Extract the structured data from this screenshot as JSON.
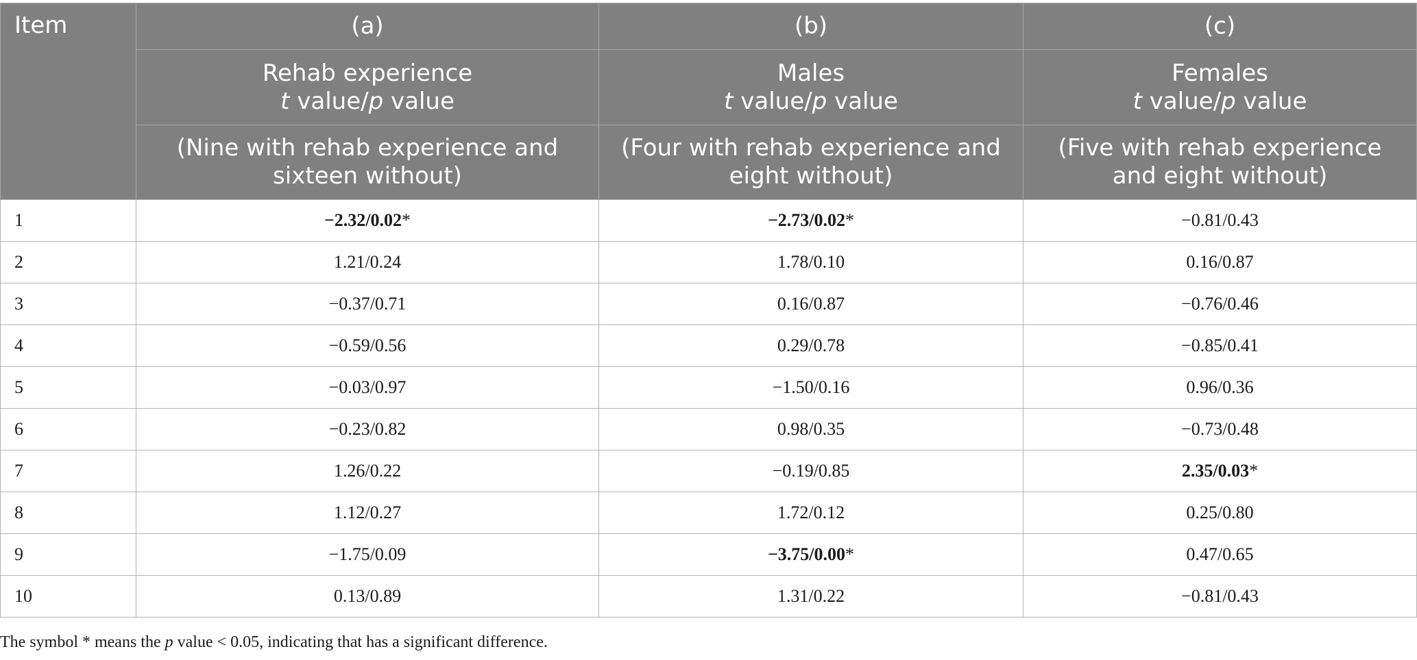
{
  "table": {
    "header": {
      "item_label": "Item",
      "columns": [
        {
          "letter": "(a)",
          "title": "Rehab experience",
          "metric": {
            "t": "t",
            "mid": " value/",
            "p": "p",
            "end": " value"
          },
          "desc_line1": "(Nine with rehab experience and",
          "desc_line2": "sixteen without)"
        },
        {
          "letter": "(b)",
          "title": "Males",
          "metric": {
            "t": "t",
            "mid": " value/",
            "p": "p",
            "end": " value"
          },
          "desc_line1": "(Four with rehab experience and",
          "desc_line2": "eight without)"
        },
        {
          "letter": "(c)",
          "title": "Females",
          "metric": {
            "t": "t",
            "mid": " value/",
            "p": "p",
            "end": " value"
          },
          "desc_line1": "(Five with rehab experience",
          "desc_line2": "and eight without)"
        }
      ]
    },
    "rows": [
      {
        "item": "1",
        "cells": [
          {
            "value": "−2.32/0.02",
            "mark": "*"
          },
          {
            "value": "−2.73/0.02",
            "mark": "*"
          },
          {
            "value": "−0.81/0.43",
            "mark": ""
          }
        ]
      },
      {
        "item": "2",
        "cells": [
          {
            "value": "1.21/0.24",
            "mark": ""
          },
          {
            "value": "1.78/0.10",
            "mark": ""
          },
          {
            "value": "0.16/0.87",
            "mark": ""
          }
        ]
      },
      {
        "item": "3",
        "cells": [
          {
            "value": "−0.37/0.71",
            "mark": ""
          },
          {
            "value": "0.16/0.87",
            "mark": ""
          },
          {
            "value": "−0.76/0.46",
            "mark": ""
          }
        ]
      },
      {
        "item": "4",
        "cells": [
          {
            "value": "−0.59/0.56",
            "mark": ""
          },
          {
            "value": "0.29/0.78",
            "mark": ""
          },
          {
            "value": "−0.85/0.41",
            "mark": ""
          }
        ]
      },
      {
        "item": "5",
        "cells": [
          {
            "value": "−0.03/0.97",
            "mark": ""
          },
          {
            "value": "−1.50/0.16",
            "mark": ""
          },
          {
            "value": "0.96/0.36",
            "mark": ""
          }
        ]
      },
      {
        "item": "6",
        "cells": [
          {
            "value": "−0.23/0.82",
            "mark": ""
          },
          {
            "value": "0.98/0.35",
            "mark": ""
          },
          {
            "value": "−0.73/0.48",
            "mark": ""
          }
        ]
      },
      {
        "item": "7",
        "cells": [
          {
            "value": "1.26/0.22",
            "mark": ""
          },
          {
            "value": "−0.19/0.85",
            "mark": ""
          },
          {
            "value": "2.35/0.03",
            "mark": "*"
          }
        ]
      },
      {
        "item": "8",
        "cells": [
          {
            "value": "1.12/0.27",
            "mark": ""
          },
          {
            "value": "1.72/0.12",
            "mark": ""
          },
          {
            "value": "0.25/0.80",
            "mark": ""
          }
        ]
      },
      {
        "item": "9",
        "cells": [
          {
            "value": "−1.75/0.09",
            "mark": ""
          },
          {
            "value": "−3.75/0.00",
            "mark": "*"
          },
          {
            "value": "0.47/0.65",
            "mark": ""
          }
        ]
      },
      {
        "item": "10",
        "cells": [
          {
            "value": "0.13/0.89",
            "mark": ""
          },
          {
            "value": "1.31/0.22",
            "mark": ""
          },
          {
            "value": "−0.81/0.43",
            "mark": ""
          }
        ]
      }
    ]
  },
  "footnote": {
    "before": "The symbol * means the ",
    "italic": "p",
    "after": " value < 0.05, indicating that has a significant difference."
  }
}
